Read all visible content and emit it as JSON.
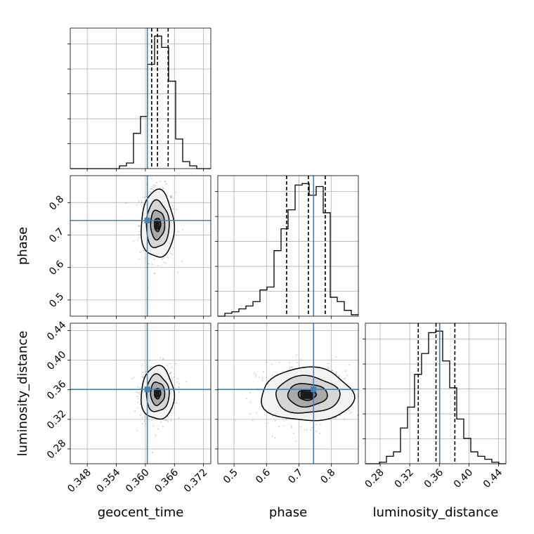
{
  "chart_data": {
    "type": "corner",
    "parameters": [
      "geocent_time",
      "phase",
      "luminosity_distance"
    ],
    "axis_labels": {
      "geocent_time": "geocent_time",
      "phase": "phase",
      "luminosity_distance": "luminosity_distance"
    },
    "ranges": {
      "geocent_time": [
        0.3445,
        0.3735
      ],
      "phase": [
        0.45,
        0.883
      ],
      "luminosity_distance": [
        0.26,
        0.45
      ]
    },
    "ticks": {
      "geocent_time": [
        "0.348",
        "0.354",
        "0.360",
        "0.366",
        "0.372"
      ],
      "phase": [
        "0.5",
        "0.6",
        "0.7",
        "0.8"
      ],
      "luminosity_distance": [
        "0.28",
        "0.32",
        "0.36",
        "0.40",
        "0.44"
      ]
    },
    "truths": {
      "geocent_time": 0.3604,
      "phase": 0.745,
      "luminosity_distance": 0.3605
    },
    "quantiles": {
      "geocent_time": [
        0.3613,
        0.3625,
        0.3647
      ],
      "phase": [
        0.662,
        0.729,
        0.781
      ],
      "luminosity_distance": [
        0.3315,
        0.3555,
        0.381
      ]
    },
    "histograms": {
      "geocent_time": {
        "bin_start": 0.3445,
        "bin_width": 0.00145,
        "counts": [
          0,
          0,
          0,
          0,
          0,
          0,
          0,
          0.02,
          0.04,
          0.25,
          0.37,
          0.74,
          0.94,
          0.86,
          0.62,
          0.21,
          0.05,
          0.02,
          0,
          0
        ]
      },
      "phase": {
        "bin_start": 0.45,
        "bin_width": 0.02165,
        "counts": [
          0,
          0.02,
          0.03,
          0.05,
          0.07,
          0.1,
          0.18,
          0.2,
          0.45,
          0.6,
          0.73,
          0.9,
          0.91,
          0.83,
          0.89,
          0.71,
          0.13,
          0.1,
          0.04,
          0.01
        ]
      },
      "luminosity_distance": {
        "bin_start": 0.26,
        "bin_width": 0.0095,
        "counts": [
          0,
          0,
          0.01,
          0.05,
          0.08,
          0.24,
          0.38,
          0.6,
          0.74,
          0.88,
          0.89,
          0.69,
          0.51,
          0.3,
          0.17,
          0.08,
          0.05,
          0.03,
          0.01,
          0
        ]
      }
    },
    "pairs": [
      {
        "x": "geocent_time",
        "y": "phase",
        "center": [
          0.3625,
          0.732
        ],
        "sigma": [
          0.0017,
          0.052
        ],
        "levels": [
          0.39,
          0.86,
          1.39,
          2.0
        ]
      },
      {
        "x": "geocent_time",
        "y": "luminosity_distance",
        "center": [
          0.3625,
          0.355
        ],
        "sigma": [
          0.0017,
          0.018
        ],
        "levels": [
          0.39,
          0.86,
          1.39,
          2.0
        ]
      },
      {
        "x": "phase",
        "y": "luminosity_distance",
        "center": [
          0.725,
          0.353
        ],
        "sigma": [
          0.071,
          0.018
        ],
        "levels": [
          0.39,
          0.86,
          1.39,
          2.0
        ]
      }
    ],
    "colors": {
      "truth": "#4682b4",
      "hist": "#000000",
      "contour": "#000000",
      "density": "#555555",
      "points": "#9a9a9a",
      "grid": "#b0b0b0"
    },
    "grid": true
  }
}
